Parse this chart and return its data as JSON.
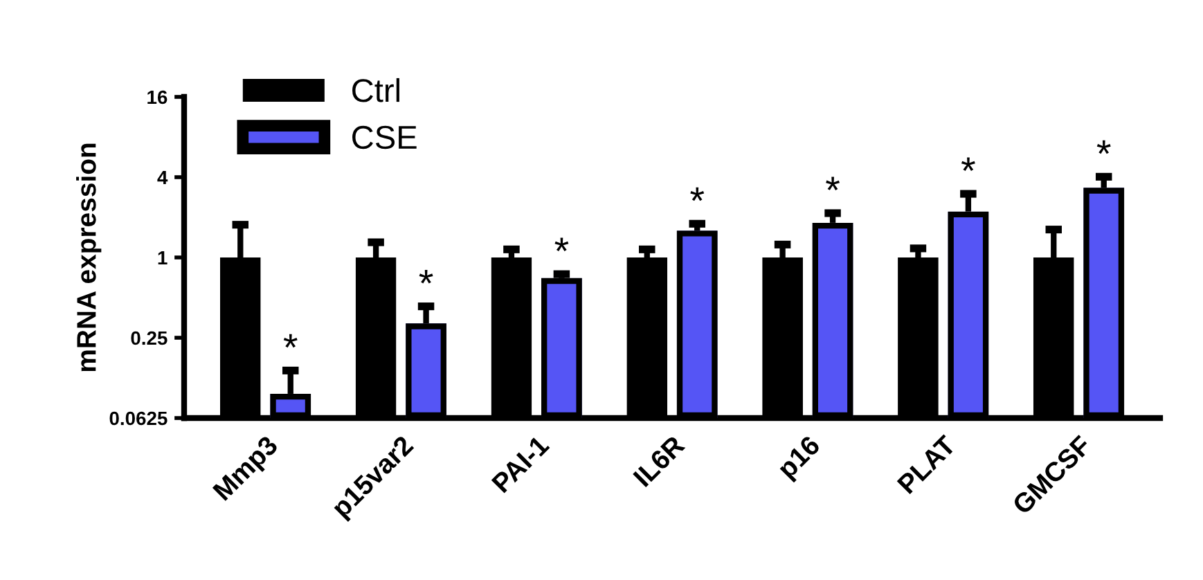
{
  "chart_data": {
    "type": "bar",
    "ylabel": "mRNA expression",
    "categories": [
      "Mmp3",
      "p15var2",
      "PAI-1",
      "IL6R",
      "p16",
      "PLAT",
      "GMCSF"
    ],
    "series": [
      {
        "name": "Ctrl",
        "color": "#000000",
        "values": [
          1.0,
          1.0,
          1.0,
          1.0,
          1.0,
          1.0,
          1.0
        ],
        "errors": [
          [
            1.0,
            1.76
          ],
          [
            1.0,
            1.3
          ],
          [
            1.0,
            1.15
          ],
          [
            1.0,
            1.15
          ],
          [
            1.0,
            1.25
          ],
          [
            1.0,
            1.17
          ],
          [
            1.0,
            1.62
          ]
        ]
      },
      {
        "name": "CSE",
        "color": "#5555f5",
        "values": [
          0.095,
          0.32,
          0.7,
          1.59,
          1.82,
          2.21,
          3.33
        ],
        "errors": [
          [
            0.095,
            0.142
          ],
          [
            0.32,
            0.43
          ],
          [
            0.7,
            0.75
          ],
          [
            1.59,
            1.79
          ],
          [
            1.82,
            2.15
          ],
          [
            2.21,
            3.0
          ],
          [
            3.33,
            4.03
          ]
        ]
      }
    ],
    "annotations": [
      "*",
      "*",
      "*",
      "*",
      "*",
      "*",
      "*"
    ],
    "log": "y",
    "ylim": [
      0.0625,
      16
    ],
    "yticks": [
      16,
      4,
      1,
      0.25,
      0.0625
    ],
    "grid": false,
    "legend": "top left"
  }
}
